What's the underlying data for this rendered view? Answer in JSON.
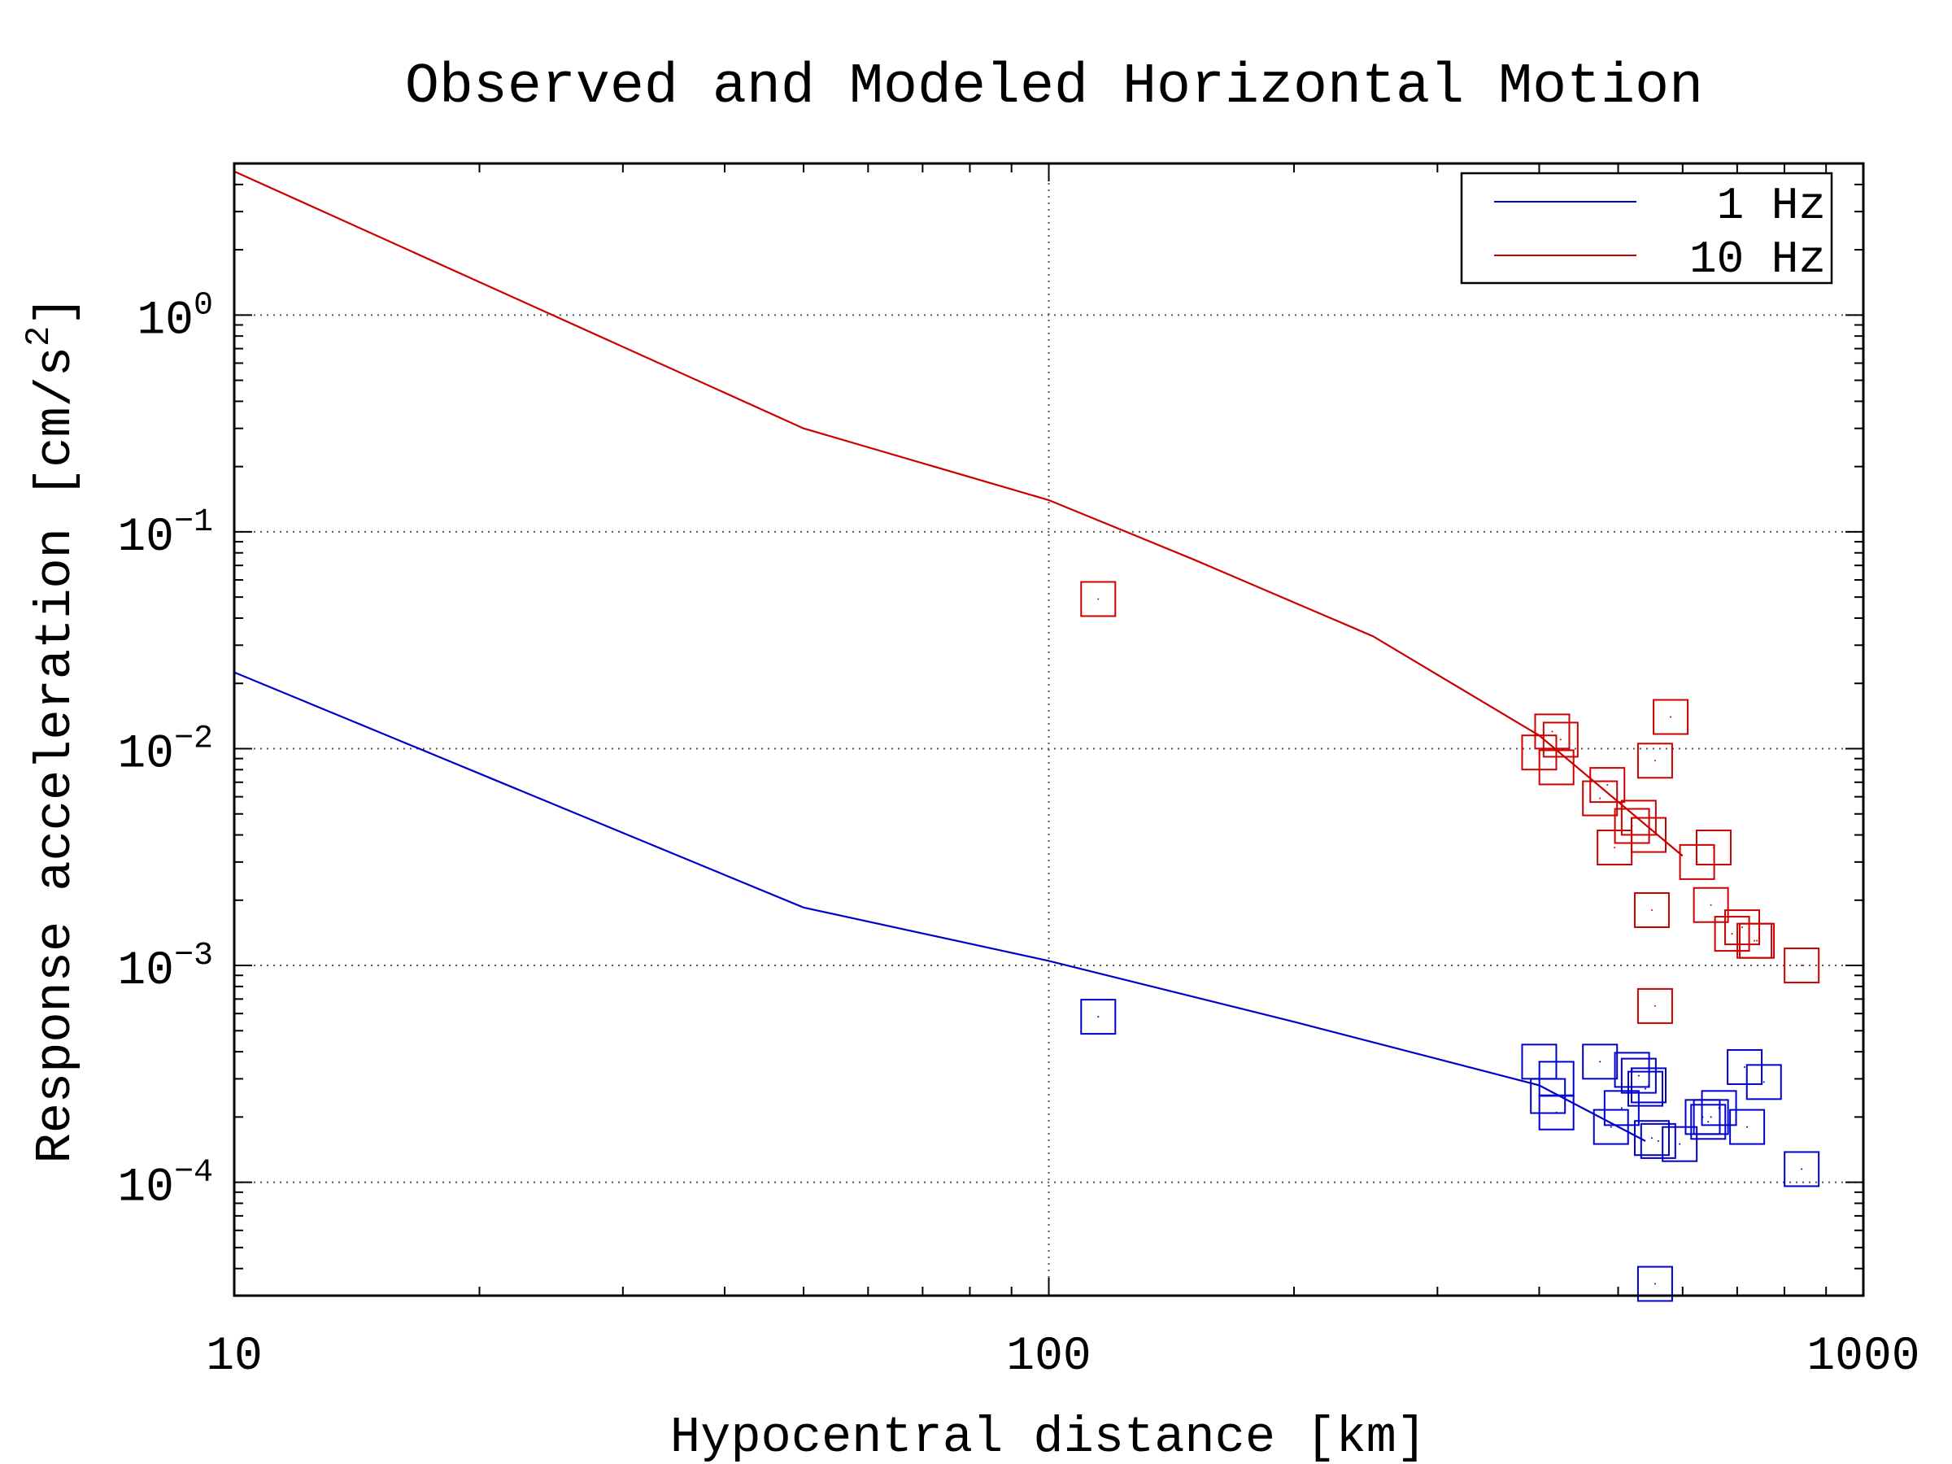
{
  "chart_data": {
    "type": "scatter",
    "title": "Observed and Modeled Horizontal Motion",
    "xlabel": "Hypocentral distance [km]",
    "ylabel": "Response acceleration [cm/s",
    "ylabel_sup": "2",
    "ylabel_end": "]",
    "x_scale": "log",
    "y_scale": "log",
    "xlim": [
      10,
      1000
    ],
    "ylim": [
      3e-05,
      5
    ],
    "x_ticks": [
      {
        "value": 10,
        "label": "10"
      },
      {
        "value": 100,
        "label": "100"
      },
      {
        "value": 1000,
        "label": "1000"
      }
    ],
    "y_ticks": [
      {
        "value": 1,
        "base": "10",
        "exp": "0"
      },
      {
        "value": 0.1,
        "base": "10",
        "exp": "−1"
      },
      {
        "value": 0.01,
        "base": "10",
        "exp": "−2"
      },
      {
        "value": 0.001,
        "base": "10",
        "exp": "−3"
      },
      {
        "value": 0.0001,
        "base": "10",
        "exp": "−4"
      }
    ],
    "grid": "dotted",
    "legend_position": "top-right",
    "series": [
      {
        "name": "1 Hz",
        "color": "#0000cc",
        "model_line": [
          [
            10,
            0.0225
          ],
          [
            50,
            0.00185
          ],
          [
            100,
            0.00105
          ],
          [
            200,
            0.00055
          ],
          [
            400,
            0.00028
          ],
          [
            540,
            0.000155
          ]
        ],
        "observations": [
          [
            115,
            0.00058
          ],
          [
            400,
            0.00036
          ],
          [
            410,
            0.00025
          ],
          [
            420,
            0.0003
          ],
          [
            420,
            0.00021
          ],
          [
            475,
            0.00036
          ],
          [
            490,
            0.00018
          ],
          [
            505,
            0.00022
          ],
          [
            520,
            0.00033
          ],
          [
            530,
            0.00031
          ],
          [
            540,
            0.00027
          ],
          [
            545,
            0.00028
          ],
          [
            550,
            0.00016
          ],
          [
            560,
            0.000155
          ],
          [
            555,
            3.4e-05
          ],
          [
            595,
            0.00015
          ],
          [
            635,
            0.0002
          ],
          [
            645,
            0.00019
          ],
          [
            650,
            0.0002
          ],
          [
            665,
            0.00022
          ],
          [
            715,
            0.00034
          ],
          [
            720,
            0.00018
          ],
          [
            755,
            0.00029
          ],
          [
            840,
            0.000115
          ]
        ]
      },
      {
        "name": "10 Hz",
        "color": "#cc0000",
        "model_line": [
          [
            10,
            4.6
          ],
          [
            50,
            0.3
          ],
          [
            100,
            0.14
          ],
          [
            150,
            0.075
          ],
          [
            250,
            0.033
          ],
          [
            400,
            0.0115
          ],
          [
            600,
            0.0032
          ]
        ],
        "observations": [
          [
            115,
            0.049
          ],
          [
            400,
            0.0096
          ],
          [
            415,
            0.012
          ],
          [
            420,
            0.0082
          ],
          [
            425,
            0.011
          ],
          [
            475,
            0.0059
          ],
          [
            485,
            0.0068
          ],
          [
            495,
            0.0035
          ],
          [
            520,
            0.0044
          ],
          [
            530,
            0.0048
          ],
          [
            545,
            0.004
          ],
          [
            550,
            0.0018
          ],
          [
            555,
            0.0088
          ],
          [
            555,
            0.00065
          ],
          [
            580,
            0.014
          ],
          [
            625,
            0.003
          ],
          [
            655,
            0.0035
          ],
          [
            650,
            0.0019
          ],
          [
            690,
            0.0014
          ],
          [
            710,
            0.0015
          ],
          [
            735,
            0.0013
          ],
          [
            740,
            0.0013
          ],
          [
            840,
            0.001
          ]
        ]
      }
    ]
  }
}
